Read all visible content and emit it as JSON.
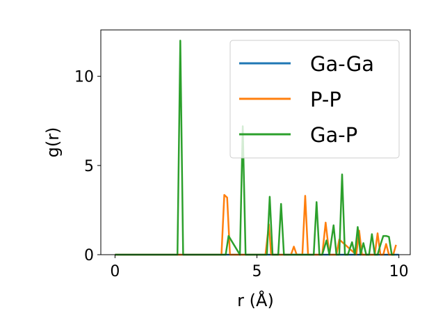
{
  "chart_data": {
    "type": "line",
    "title": "",
    "xlabel": "r (Å)",
    "ylabel": "g(r)",
    "xlim": [
      -0.5,
      10.4
    ],
    "ylim": [
      0,
      12.6
    ],
    "xticks": [
      "0",
      "5",
      "10"
    ],
    "yticks": [
      "0",
      "5",
      "10"
    ],
    "grid": false,
    "legend_position": "top-right",
    "series": [
      {
        "name": "Ga-Ga",
        "color": "#1f77b4",
        "x": [
          0,
          10
        ],
        "y": [
          0,
          0
        ]
      },
      {
        "name": "P-P",
        "color": "#ff7f0e",
        "x": [
          0,
          3.75,
          3.85,
          3.95,
          4.05,
          5.3,
          5.42,
          5.5,
          6.2,
          6.3,
          6.4,
          6.6,
          6.7,
          6.8,
          7.3,
          7.42,
          7.55,
          7.8,
          7.9,
          8.5,
          8.6,
          8.7,
          9.15,
          9.25,
          9.35,
          9.45,
          9.55,
          9.65,
          9.8,
          9.9
        ],
        "y": [
          0,
          0,
          3.35,
          3.2,
          0,
          0,
          1.7,
          0,
          0,
          0.45,
          0,
          0,
          3.3,
          0,
          0,
          1.8,
          0,
          0,
          0.85,
          0,
          1.35,
          0,
          0,
          1.2,
          0,
          0,
          0.6,
          0,
          0,
          0.55
        ]
      },
      {
        "name": "Ga-P",
        "color": "#2ca02c",
        "x": [
          0,
          2.2,
          2.3,
          2.4,
          3.8,
          3.9,
          4.0,
          4.4,
          4.5,
          4.6,
          5.35,
          5.45,
          5.55,
          5.75,
          5.85,
          5.95,
          6.9,
          7.0,
          7.1,
          7.2,
          7.3,
          7.45,
          7.55,
          7.7,
          7.8,
          7.9,
          8.0,
          8.1,
          8.2,
          8.35,
          8.45,
          8.55,
          8.65,
          8.75,
          8.85,
          8.95,
          9.05,
          9.15,
          9.25,
          9.35,
          9.45,
          9.55,
          9.65,
          9.75,
          9.85
        ],
        "y": [
          0,
          0,
          12.0,
          0,
          0,
          0,
          1.05,
          0,
          7.2,
          0,
          0,
          3.25,
          0,
          0,
          2.85,
          0,
          0,
          0,
          2.95,
          0,
          0,
          0.8,
          0,
          1.65,
          0,
          0,
          4.5,
          0,
          0,
          0.7,
          0,
          1.55,
          0,
          0.65,
          0,
          0,
          1.15,
          0,
          0,
          0.55,
          1.05,
          1.05,
          1.0,
          0,
          0
        ]
      }
    ]
  }
}
